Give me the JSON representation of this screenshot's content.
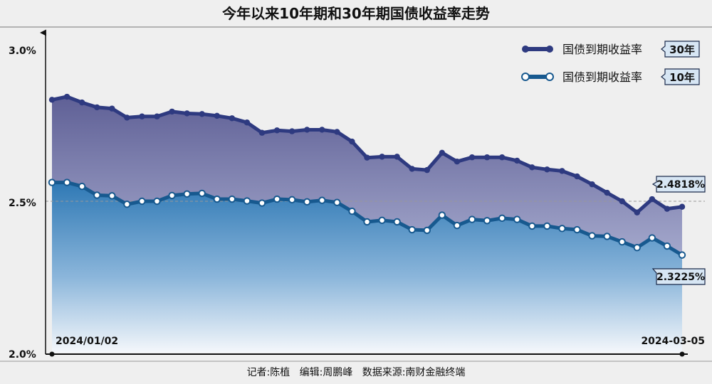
{
  "chart_data": {
    "type": "area",
    "title": "今年以来10年期和30年期国债收益率走势",
    "ylim": [
      2.0,
      3.0
    ],
    "yticks": [
      "2.0%",
      "2.5%",
      "3.0%"
    ],
    "x_start_label": "2024/01/02",
    "x_end_label": "2024-03-05",
    "footer": "记者:陈植   编辑:周鹏峰   数据来源:南财金融终端",
    "end_labels": {
      "series_30y": "2.4818%",
      "series_10y": "2.3225%"
    },
    "legend_position": "top-right",
    "series": [
      {
        "name": "国债到期收益率",
        "tag": "30年",
        "color": "#2e3a80",
        "values": [
          2.835,
          2.845,
          2.826,
          2.81,
          2.806,
          2.776,
          2.78,
          2.78,
          2.796,
          2.79,
          2.788,
          2.782,
          2.774,
          2.76,
          2.726,
          2.734,
          2.731,
          2.736,
          2.736,
          2.729,
          2.697,
          2.644,
          2.647,
          2.647,
          2.607,
          2.603,
          2.66,
          2.631,
          2.645,
          2.645,
          2.645,
          2.634,
          2.612,
          2.605,
          2.6,
          2.582,
          2.556,
          2.528,
          2.5,
          2.463,
          2.507,
          2.475,
          2.4818
        ]
      },
      {
        "name": "国债到期收益率",
        "tag": "10年",
        "color": "#17598f",
        "values": [
          2.562,
          2.562,
          2.549,
          2.52,
          2.518,
          2.49,
          2.5,
          2.5,
          2.519,
          2.524,
          2.526,
          2.507,
          2.507,
          2.501,
          2.494,
          2.507,
          2.505,
          2.498,
          2.503,
          2.496,
          2.467,
          2.432,
          2.437,
          2.432,
          2.406,
          2.404,
          2.454,
          2.42,
          2.44,
          2.436,
          2.444,
          2.44,
          2.418,
          2.418,
          2.41,
          2.406,
          2.386,
          2.384,
          2.366,
          2.347,
          2.379,
          2.352,
          2.3225
        ]
      }
    ]
  }
}
